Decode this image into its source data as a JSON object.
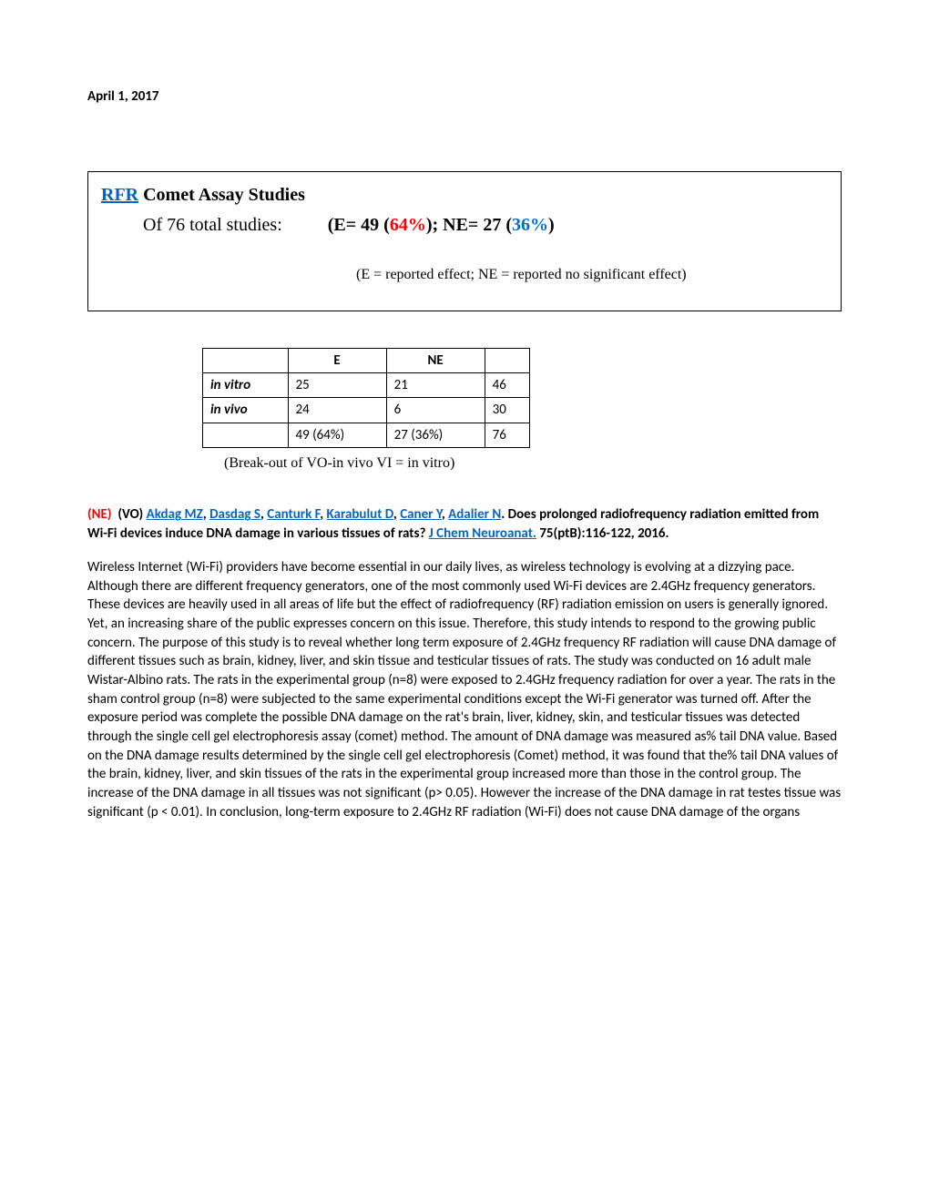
{
  "date": "April 1, 2017",
  "box": {
    "title_link": "RFR",
    "title_rest": " Comet Assay Studies",
    "subline_prefix": "Of 76 total studies:",
    "subline_stats_open": "(E= 49 (",
    "subline_e_pct": "64%",
    "subline_stats_mid": "); NE= 27 (",
    "subline_ne_pct": "36%",
    "subline_stats_close": ")",
    "note": "(E = reported effect; NE = reported no significant effect)"
  },
  "table": {
    "head_e": "E",
    "head_ne": "NE",
    "rows": [
      {
        "label": "in vitro",
        "e": "25",
        "ne": "21",
        "tot": "46"
      },
      {
        "label": "in vivo",
        "e": "24",
        "ne": "6",
        "tot": "30"
      }
    ],
    "foot_e": "49 (64%)",
    "foot_ne": "27 (36%)",
    "foot_tot": "76",
    "caption": "(Break-out of VO-in vivo  VI = in vitro)"
  },
  "citation": {
    "ne": "(NE)",
    "vo": "(VO)",
    "authors": [
      "Akdag MZ",
      "Dasdag S",
      "Canturk F",
      "Karabulut D",
      "Caner Y",
      "Adalier N"
    ],
    "title_after": ". Does prolonged radiofrequency radiation emitted from Wi-Fi devices induce DNA damage in various tissues of rats? ",
    "journal": "J Chem Neuroanat.",
    "ref": " 75(ptB):116-122, 2016."
  },
  "abstract": "Wireless Internet (Wi-Fi) providers have become essential in our daily lives, as wireless technology is evolving at a dizzying pace. Although there are different frequency generators, one of the most commonly used Wi-Fi devices are 2.4GHz frequency generators. These devices are heavily used in all areas of life but the effect of radiofrequency (RF) radiation emission on users is generally ignored. Yet, an increasing share of the public expresses concern on this issue. Therefore, this study intends to respond to the growing public concern. The purpose of this study is to reveal whether long term exposure of 2.4GHz frequency RF radiation will cause DNA damage of different tissues such as brain, kidney, liver, and skin tissue and testicular tissues of rats. The study was conducted on 16 adult male Wistar-Albino rats. The rats in the experimental group (n=8) were exposed to 2.4GHz frequency radiation for over a year. The rats in the sham control group (n=8) were subjected to the same experimental conditions except the Wi-Fi generator was turned off. After the exposure period was complete the possible DNA damage on the rat's brain, liver, kidney, skin, and testicular tissues was detected through the single cell gel electrophoresis assay (comet) method. The amount of DNA damage was measured as% tail DNA value. Based on the DNA damage results determined by the single cell gel electrophoresis (Comet) method, it was found that the% tail DNA values of the brain, kidney, liver, and skin tissues of the rats in the experimental group increased more than those in the control group. The increase of the DNA damage in all tissues was not significant (p> 0.05). However the increase of the DNA damage in rat testes tissue was significant (p < 0.01). In conclusion, long-term exposure to 2.4GHz RF radiation (Wi-Fi) does not cause DNA damage of the organs"
}
